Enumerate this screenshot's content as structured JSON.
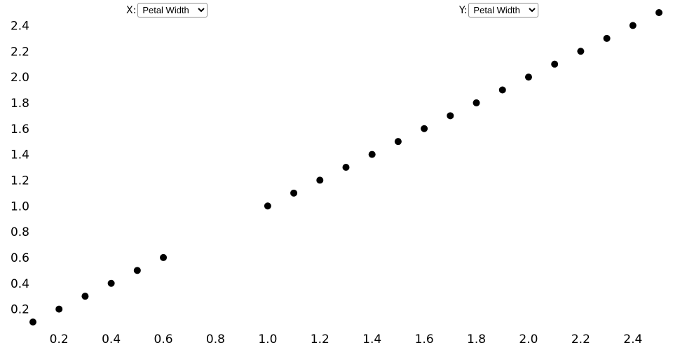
{
  "controls": {
    "x_label": "X:",
    "y_label": "Y:",
    "x_select_value": "Petal Width",
    "y_select_value": "Petal Width"
  },
  "chart_data": {
    "type": "scatter",
    "title": "",
    "xlabel": "",
    "ylabel": "",
    "x_field": "Petal Width",
    "y_field": "Petal Width",
    "x": [
      0.1,
      0.2,
      0.3,
      0.4,
      0.5,
      0.6,
      1.0,
      1.1,
      1.2,
      1.3,
      1.4,
      1.5,
      1.6,
      1.7,
      1.8,
      1.9,
      2.0,
      2.1,
      2.2,
      2.3,
      2.4,
      2.5
    ],
    "y": [
      0.1,
      0.2,
      0.3,
      0.4,
      0.5,
      0.6,
      1.0,
      1.1,
      1.2,
      1.3,
      1.4,
      1.5,
      1.6,
      1.7,
      1.8,
      1.9,
      2.0,
      2.1,
      2.2,
      2.3,
      2.4,
      2.5
    ],
    "xlim": [
      0.1,
      2.5
    ],
    "ylim": [
      0.1,
      2.5
    ],
    "x_ticks": [
      0.2,
      0.4,
      0.6,
      0.8,
      1.0,
      1.2,
      1.4,
      1.6,
      1.8,
      2.0,
      2.2,
      2.4
    ],
    "y_ticks": [
      0.2,
      0.4,
      0.6,
      0.8,
      1.0,
      1.2,
      1.4,
      1.6,
      1.8,
      2.0,
      2.2,
      2.4
    ],
    "grid": false,
    "legend": "none",
    "point_color": "#000000",
    "point_radius": 5
  }
}
